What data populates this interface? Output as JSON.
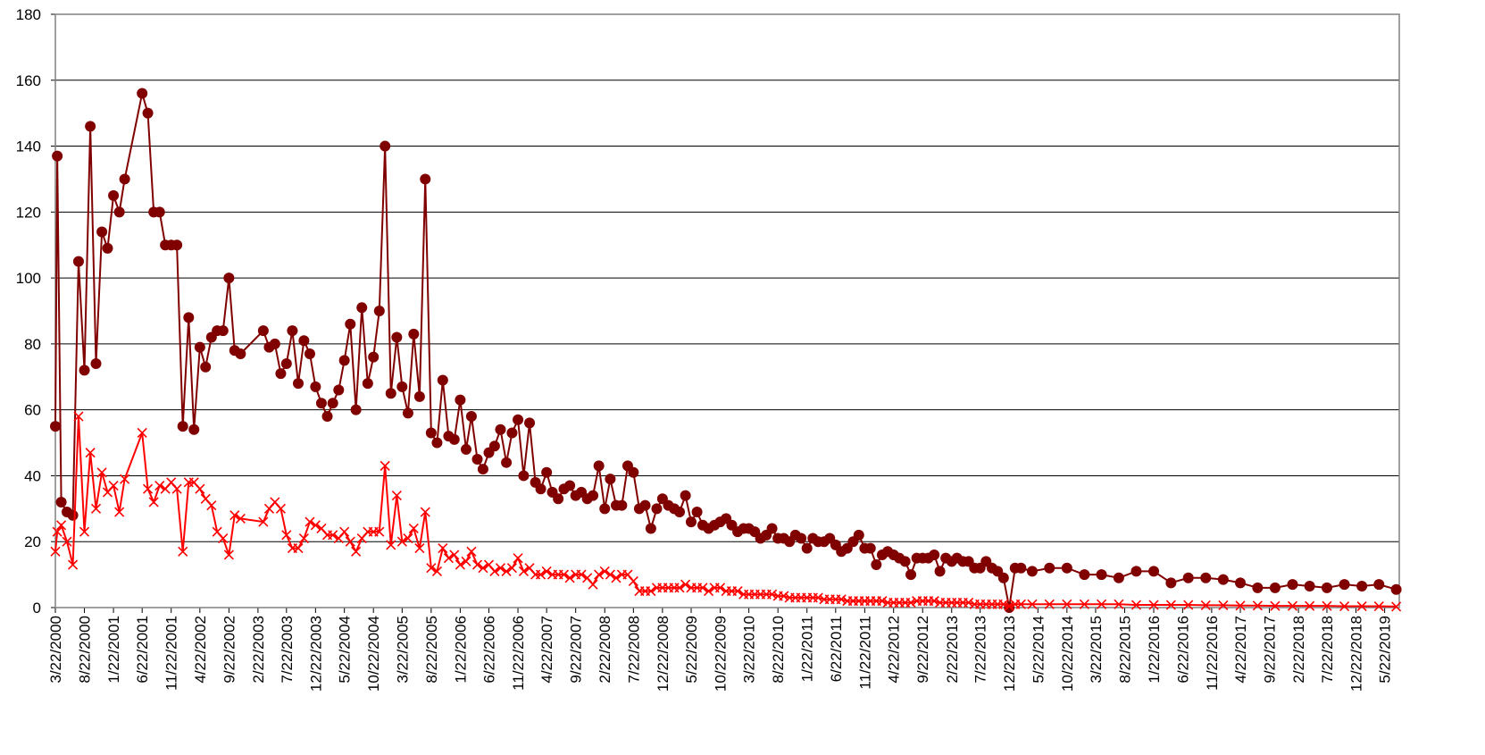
{
  "chart_data": {
    "type": "line",
    "x": [
      "3/22/2000",
      "4/1/2000",
      "4/22/2000",
      "5/22/2000",
      "6/22/2000",
      "7/22/2000",
      "8/22/2000",
      "9/22/2000",
      "10/22/2000",
      "11/22/2000",
      "12/22/2000",
      "1/22/2001",
      "2/22/2001",
      "3/22/2001",
      "6/22/2001",
      "7/22/2001",
      "8/22/2001",
      "9/22/2001",
      "10/22/2001",
      "11/22/2001",
      "12/22/2001",
      "1/22/2002",
      "2/22/2002",
      "3/22/2002",
      "4/22/2002",
      "5/22/2002",
      "6/22/2002",
      "7/22/2002",
      "8/22/2002",
      "9/22/2002",
      "10/22/2002",
      "11/22/2002",
      "3/22/2003",
      "4/22/2003",
      "5/22/2003",
      "6/22/2003",
      "7/22/2003",
      "8/22/2003",
      "9/22/2003",
      "10/22/2003",
      "11/22/2003",
      "12/22/2003",
      "1/22/2004",
      "2/22/2004",
      "3/22/2004",
      "4/22/2004",
      "5/22/2004",
      "6/22/2004",
      "7/22/2004",
      "8/22/2004",
      "9/22/2004",
      "10/22/2004",
      "11/22/2004",
      "12/22/2004",
      "1/22/2005",
      "2/22/2005",
      "3/22/2005",
      "4/22/2005",
      "5/22/2005",
      "6/22/2005",
      "7/22/2005",
      "8/22/2005",
      "9/22/2005",
      "10/22/2005",
      "11/22/2005",
      "12/22/2005",
      "1/22/2006",
      "2/22/2006",
      "3/22/2006",
      "4/22/2006",
      "5/22/2006",
      "6/22/2006",
      "7/22/2006",
      "8/22/2006",
      "9/22/2006",
      "10/22/2006",
      "11/22/2006",
      "12/22/2006",
      "1/22/2007",
      "2/22/2007",
      "3/22/2007",
      "4/22/2007",
      "5/22/2007",
      "6/22/2007",
      "7/22/2007",
      "8/22/2007",
      "9/22/2007",
      "10/22/2007",
      "11/22/2007",
      "12/22/2007",
      "1/22/2008",
      "2/22/2008",
      "3/22/2008",
      "4/22/2008",
      "5/22/2008",
      "6/22/2008",
      "7/22/2008",
      "8/22/2008",
      "9/22/2008",
      "10/22/2008",
      "11/22/2008",
      "12/22/2008",
      "1/22/2009",
      "2/22/2009",
      "3/22/2009",
      "4/22/2009",
      "5/22/2009",
      "6/22/2009",
      "7/22/2009",
      "8/22/2009",
      "9/22/2009",
      "10/22/2009",
      "11/22/2009",
      "12/22/2009",
      "1/22/2010",
      "2/22/2010",
      "3/22/2010",
      "4/22/2010",
      "5/22/2010",
      "6/22/2010",
      "7/22/2010",
      "8/22/2010",
      "9/22/2010",
      "10/22/2010",
      "11/22/2010",
      "12/22/2010",
      "1/22/2011",
      "2/22/2011",
      "3/22/2011",
      "4/22/2011",
      "5/22/2011",
      "6/22/2011",
      "7/22/2011",
      "8/22/2011",
      "9/22/2011",
      "10/22/2011",
      "11/22/2011",
      "12/22/2011",
      "1/22/2012",
      "2/22/2012",
      "3/22/2012",
      "4/22/2012",
      "5/22/2012",
      "6/22/2012",
      "7/22/2012",
      "8/22/2012",
      "9/22/2012",
      "10/22/2012",
      "11/22/2012",
      "12/22/2012",
      "1/22/2013",
      "2/22/2013",
      "3/22/2013",
      "4/22/2013",
      "5/22/2013",
      "6/22/2013",
      "7/22/2013",
      "8/22/2013",
      "9/22/2013",
      "10/22/2013",
      "11/22/2013",
      "12/22/2013",
      "1/22/2014",
      "2/22/2014",
      "4/22/2014",
      "7/22/2014",
      "10/22/2014",
      "1/22/2015",
      "4/22/2015",
      "7/22/2015",
      "10/22/2015",
      "1/22/2016",
      "4/22/2016",
      "7/22/2016",
      "10/22/2016",
      "1/22/2017",
      "4/22/2017",
      "7/22/2017",
      "10/22/2017",
      "1/22/2018",
      "4/22/2018",
      "7/22/2018",
      "10/22/2018",
      "1/22/2019",
      "4/22/2019",
      "7/22/2019"
    ],
    "series": [
      {
        "color": "#800000",
        "marker": "circle",
        "values": [
          55,
          137,
          32,
          29,
          28,
          105,
          72,
          146,
          74,
          114,
          109,
          125,
          120,
          130,
          156,
          150,
          120,
          120,
          110,
          110,
          110,
          55,
          88,
          54,
          79,
          73,
          82,
          84,
          84,
          100,
          78,
          77,
          84,
          79,
          80,
          71,
          74,
          84,
          68,
          81,
          77,
          67,
          62,
          58,
          62,
          66,
          75,
          86,
          60,
          91,
          68,
          76,
          90,
          140,
          65,
          82,
          67,
          59,
          83,
          64,
          130,
          53,
          50,
          69,
          52,
          51,
          63,
          48,
          58,
          45,
          42,
          47,
          49,
          54,
          44,
          53,
          57,
          40,
          56,
          38,
          36,
          41,
          35,
          33,
          36,
          37,
          34,
          35,
          33,
          34,
          43,
          30,
          39,
          31,
          31,
          43,
          41,
          30,
          31,
          24,
          30,
          33,
          31,
          30,
          29,
          34,
          26,
          29,
          25,
          24,
          25,
          26,
          27,
          25,
          23,
          24,
          24,
          23,
          21,
          22,
          24,
          21,
          21,
          20,
          22,
          21,
          18,
          21,
          20,
          20,
          21,
          19,
          17,
          18,
          20,
          22,
          18,
          18,
          13,
          16,
          17,
          16,
          15,
          14,
          10,
          15,
          15,
          15,
          16,
          11,
          15,
          14,
          15,
          14,
          14,
          12,
          12,
          14,
          12,
          11,
          9,
          0,
          12,
          12,
          11,
          12,
          12,
          10,
          10,
          9,
          11,
          11,
          7.5,
          9,
          9,
          8.5,
          7.5,
          6,
          6,
          7,
          6.5,
          6,
          7,
          6.5,
          7,
          5.5
        ]
      },
      {
        "color": "#ff0000",
        "marker": "x",
        "values": [
          17,
          23,
          25,
          20,
          13,
          58,
          23,
          47,
          30,
          41,
          35,
          37,
          29,
          39,
          53,
          36,
          32,
          37,
          36,
          38,
          36,
          17,
          38,
          38,
          36,
          33,
          31,
          23,
          21,
          16,
          28,
          27,
          26,
          30,
          32,
          30,
          22,
          18,
          18,
          21,
          26,
          25,
          24,
          22,
          22,
          21,
          23,
          20,
          17,
          21,
          23,
          23,
          23,
          43,
          19,
          34,
          20,
          21,
          24,
          18,
          29,
          12,
          11,
          18,
          15,
          16,
          13,
          14,
          17,
          13,
          12,
          13,
          11,
          12,
          11,
          12,
          15,
          11,
          12,
          10,
          10,
          11,
          10,
          10,
          10,
          9,
          10,
          10,
          9,
          7,
          10,
          11,
          10,
          9,
          10,
          10,
          8,
          5,
          5,
          5,
          6,
          6,
          6,
          6,
          6,
          7,
          6,
          6,
          6,
          5,
          6,
          6,
          5,
          5,
          5,
          4,
          4,
          4,
          4,
          4,
          4,
          3.5,
          3.5,
          3,
          3,
          3,
          3,
          3,
          3,
          2.5,
          2.5,
          2.5,
          2.5,
          2,
          2,
          2,
          2,
          2,
          2,
          2,
          1.5,
          1.5,
          1.5,
          1.5,
          1.5,
          2,
          2,
          2,
          2,
          1.5,
          1.5,
          1.5,
          1.5,
          1.5,
          1.5,
          1,
          1,
          1,
          1,
          1,
          1,
          0.5,
          1,
          1,
          1,
          1,
          1,
          1,
          1,
          1,
          0.8,
          0.8,
          0.8,
          0.8,
          0.7,
          0.7,
          0.6,
          0.6,
          0.5,
          0.5,
          0.5,
          0.5,
          0.4,
          0.4,
          0.4,
          0.3
        ]
      }
    ],
    "xlim": [
      "3/22/2000",
      "8/7/2019"
    ],
    "xticks": [
      "3/22/2000",
      "8/22/2000",
      "1/22/2001",
      "6/22/2001",
      "11/22/2001",
      "4/22/2002",
      "9/22/2002",
      "2/22/2003",
      "7/22/2003",
      "12/22/2003",
      "5/22/2004",
      "10/22/2004",
      "3/22/2005",
      "8/22/2005",
      "1/22/2006",
      "6/22/2006",
      "11/22/2006",
      "4/22/2007",
      "9/22/2007",
      "2/22/2008",
      "7/22/2008",
      "12/22/2008",
      "5/22/2009",
      "10/22/2009",
      "3/22/2010",
      "8/22/2010",
      "1/22/2011",
      "6/22/2011",
      "11/22/2011",
      "4/22/2012",
      "9/22/2012",
      "2/22/2013",
      "7/22/2013",
      "12/22/2013",
      "5/22/2014",
      "10/22/2014",
      "3/22/2015",
      "8/22/2015",
      "1/22/2016",
      "6/22/2016",
      "11/22/2016",
      "4/22/2017",
      "9/22/2017",
      "2/22/2018",
      "7/22/2018",
      "12/22/2018",
      "5/22/2019"
    ],
    "ylim": [
      0,
      180
    ],
    "yticks": [
      0,
      20,
      40,
      60,
      80,
      100,
      120,
      140,
      160,
      180
    ],
    "grid": true
  }
}
